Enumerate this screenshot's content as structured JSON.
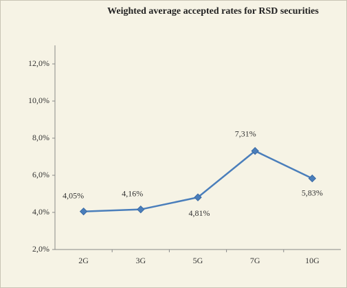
{
  "chart_data": {
    "type": "line",
    "title": "Weighted average accepted rates for RSD securities",
    "categories": [
      "2G",
      "3G",
      "5G",
      "7G",
      "10G"
    ],
    "series": [
      {
        "color": "#4a7ebb",
        "values": [
          4.05,
          4.16,
          4.81,
          7.31,
          5.83
        ],
        "value_labels": [
          "4,05%",
          "4,16%",
          "4,81%",
          "7,31%",
          "5,83%"
        ]
      }
    ],
    "ylim": [
      2,
      13
    ],
    "yticks": [
      {
        "value": 2,
        "label": "2,0%"
      },
      {
        "value": 4,
        "label": "4,0%"
      },
      {
        "value": 6,
        "label": "6,0%"
      },
      {
        "value": 8,
        "label": "8,0%"
      },
      {
        "value": 10,
        "label": "10,0%"
      },
      {
        "value": 12,
        "label": "12,0%"
      }
    ],
    "grid": false
  }
}
